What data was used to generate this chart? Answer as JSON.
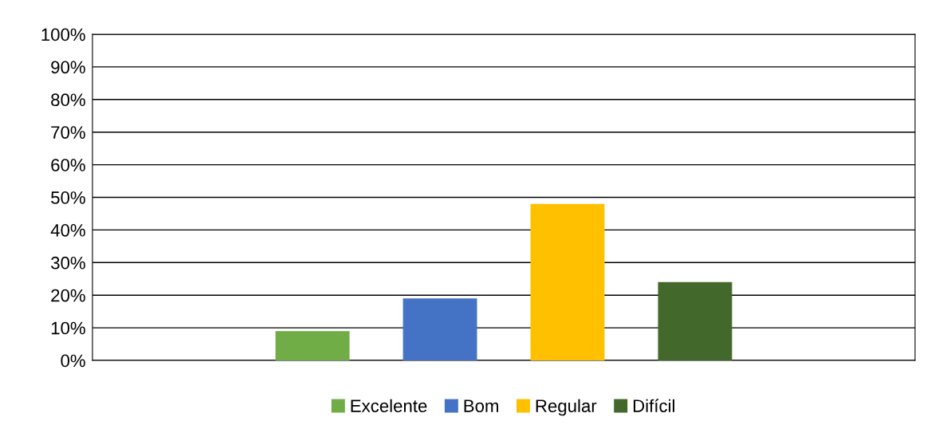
{
  "chart_data": {
    "type": "bar",
    "categories": [
      null
    ],
    "series": [
      {
        "name": "Excelente",
        "color": "#70ad47",
        "values": [
          9
        ]
      },
      {
        "name": "Bom",
        "color": "#4472c4",
        "values": [
          19
        ]
      },
      {
        "name": "Regular",
        "color": "#ffc000",
        "values": [
          48
        ]
      },
      {
        "name": "Difícil",
        "color": "#43682b",
        "values": [
          24
        ]
      }
    ],
    "ylim": [
      0,
      100
    ],
    "yticks": [
      {
        "value": 0,
        "label": "0%"
      },
      {
        "value": 10,
        "label": "10%"
      },
      {
        "value": 20,
        "label": "20%"
      },
      {
        "value": 30,
        "label": "30%"
      },
      {
        "value": 40,
        "label": "40%"
      },
      {
        "value": 50,
        "label": "50%"
      },
      {
        "value": 60,
        "label": "60%"
      },
      {
        "value": 70,
        "label": "70%"
      },
      {
        "value": 80,
        "label": "80%"
      },
      {
        "value": 90,
        "label": "90%"
      },
      {
        "value": 100,
        "label": "100%"
      }
    ],
    "grid": "y",
    "legend": "bottom"
  }
}
